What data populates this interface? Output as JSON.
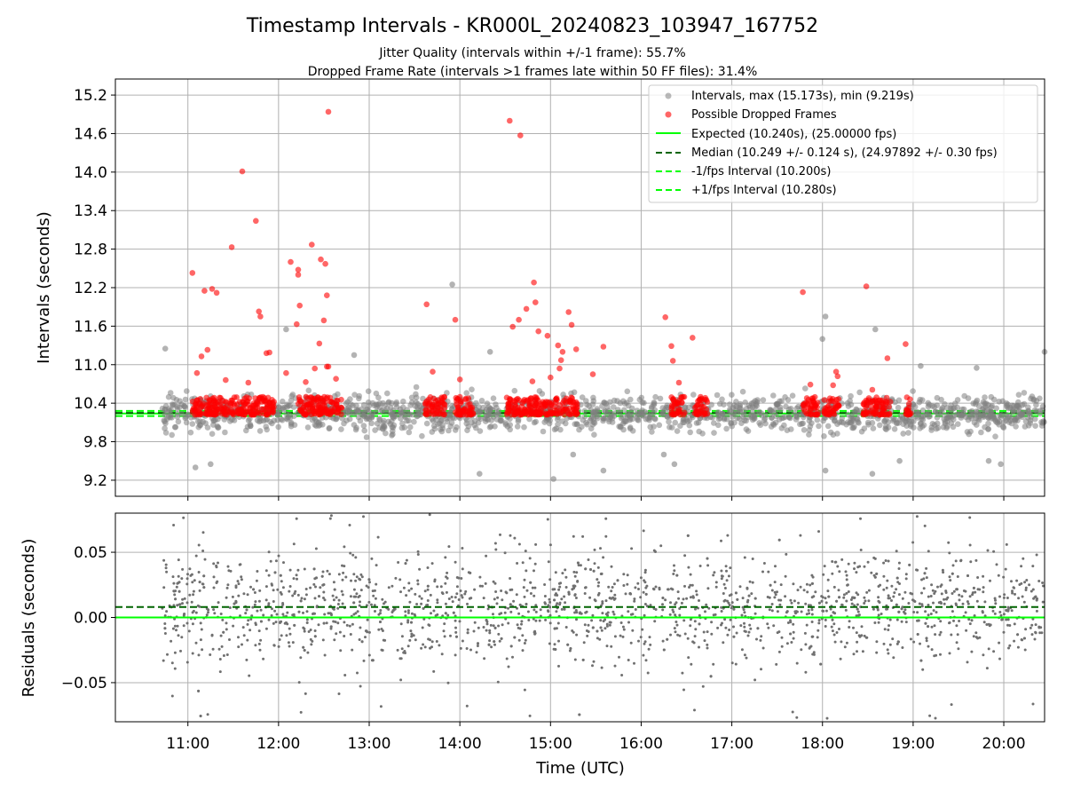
{
  "chart_data": [
    {
      "type": "scatter",
      "title": "Timestamp Intervals - KR000L_20240823_103947_167752",
      "subtitle_lines": [
        "Jitter Quality (intervals within +/-1 frame): 55.7%",
        "Dropped Frame Rate (intervals >1 frames late within 50 FF files): 31.4%"
      ],
      "xlabel": "",
      "ylabel": "Intervals (seconds)",
      "xlim": [
        "10:12",
        "20:27"
      ],
      "ylim": [
        8.95,
        15.45
      ],
      "yticks": [
        9.2,
        9.8,
        10.4,
        11.0,
        11.6,
        12.2,
        12.8,
        13.4,
        14.0,
        14.6,
        15.2
      ],
      "ytick_labels": [
        "9.2",
        "9.8",
        "10.4",
        "11.0",
        "11.6",
        "12.2",
        "12.8",
        "13.4",
        "14.0",
        "14.6",
        "15.2"
      ],
      "xticks": [
        "11:00",
        "12:00",
        "13:00",
        "14:00",
        "15:00",
        "16:00",
        "17:00",
        "18:00",
        "19:00",
        "20:00"
      ],
      "xtick_labels_shown": false,
      "grid": true,
      "legend_position": "top-right",
      "series": [
        {
          "name": "Intervals, max (15.173s), min (9.219s)",
          "kind": "scatter",
          "color": "#808080",
          "summary": {
            "count_approx": 2600,
            "x_range": [
              "10:43",
              "20:27"
            ],
            "typical_y": [
              10.0,
              10.5
            ],
            "max": 15.173,
            "min": 9.219
          },
          "notable_points": [
            {
              "x": "10:45",
              "y": 11.25
            },
            {
              "x": "11:05",
              "y": 9.4
            },
            {
              "x": "11:15",
              "y": 9.45
            },
            {
              "x": "12:05",
              "y": 11.55
            },
            {
              "x": "12:50",
              "y": 11.15
            },
            {
              "x": "13:55",
              "y": 12.25
            },
            {
              "x": "14:13",
              "y": 9.3
            },
            {
              "x": "14:20",
              "y": 11.2
            },
            {
              "x": "15:02",
              "y": 9.22
            },
            {
              "x": "15:15",
              "y": 9.6
            },
            {
              "x": "15:35",
              "y": 9.35
            },
            {
              "x": "16:15",
              "y": 9.6
            },
            {
              "x": "16:22",
              "y": 9.45
            },
            {
              "x": "18:02",
              "y": 11.75
            },
            {
              "x": "18:00",
              "y": 11.4
            },
            {
              "x": "18:02",
              "y": 9.35
            },
            {
              "x": "18:35",
              "y": 11.55
            },
            {
              "x": "18:33",
              "y": 9.3
            },
            {
              "x": "18:51",
              "y": 9.5
            },
            {
              "x": "19:05",
              "y": 10.98
            },
            {
              "x": "19:42",
              "y": 10.95
            },
            {
              "x": "19:50",
              "y": 9.5
            },
            {
              "x": "19:58",
              "y": 9.45
            },
            {
              "x": "20:27",
              "y": 11.2
            }
          ]
        },
        {
          "name": "Possible Dropped Frames",
          "kind": "scatter",
          "color": "#ff0000",
          "summary": {
            "band_y": [
              10.22,
              10.5
            ]
          },
          "band_segments": [
            [
              "11:03",
              "11:57"
            ],
            [
              "12:13",
              "12:42"
            ],
            [
              "13:37",
              "13:50"
            ],
            [
              "13:57",
              "14:09"
            ],
            [
              "14:31",
              "15:18"
            ],
            [
              "16:20",
              "16:29"
            ],
            [
              "16:35",
              "16:44"
            ],
            [
              "17:47",
              "17:57"
            ],
            [
              "18:01",
              "18:11"
            ],
            [
              "18:27",
              "18:45"
            ],
            [
              "18:55",
              "18:59"
            ]
          ],
          "points": [
            {
              "x": "11:03",
              "y": 12.43
            },
            {
              "x": "11:11",
              "y": 12.15
            },
            {
              "x": "11:16",
              "y": 12.18
            },
            {
              "x": "11:19",
              "y": 12.12
            },
            {
              "x": "11:29",
              "y": 12.83
            },
            {
              "x": "11:36",
              "y": 14.01
            },
            {
              "x": "11:45",
              "y": 13.24
            },
            {
              "x": "11:47",
              "y": 11.83
            },
            {
              "x": "11:48",
              "y": 11.75
            },
            {
              "x": "11:52",
              "y": 11.18
            },
            {
              "x": "11:54",
              "y": 11.19
            },
            {
              "x": "11:09",
              "y": 11.13
            },
            {
              "x": "11:13",
              "y": 11.23
            },
            {
              "x": "12:08",
              "y": 12.6
            },
            {
              "x": "12:13",
              "y": 12.48
            },
            {
              "x": "12:13",
              "y": 12.4
            },
            {
              "x": "12:14",
              "y": 11.92
            },
            {
              "x": "12:12",
              "y": 11.63
            },
            {
              "x": "12:22",
              "y": 12.87
            },
            {
              "x": "12:27",
              "y": 11.33
            },
            {
              "x": "12:28",
              "y": 12.64
            },
            {
              "x": "12:30",
              "y": 11.69
            },
            {
              "x": "12:31",
              "y": 12.57
            },
            {
              "x": "12:32",
              "y": 12.08
            },
            {
              "x": "12:33",
              "y": 14.94
            },
            {
              "x": "12:32",
              "y": 10.97
            },
            {
              "x": "12:33",
              "y": 10.97
            },
            {
              "x": "13:38",
              "y": 11.94
            },
            {
              "x": "13:57",
              "y": 11.7
            },
            {
              "x": "14:33",
              "y": 14.8
            },
            {
              "x": "14:40",
              "y": 14.57
            },
            {
              "x": "14:39",
              "y": 11.7
            },
            {
              "x": "14:35",
              "y": 11.59
            },
            {
              "x": "14:44",
              "y": 11.87
            },
            {
              "x": "14:50",
              "y": 11.97
            },
            {
              "x": "14:49",
              "y": 12.28
            },
            {
              "x": "14:52",
              "y": 11.52
            },
            {
              "x": "14:58",
              "y": 11.45
            },
            {
              "x": "15:05",
              "y": 11.3
            },
            {
              "x": "15:07",
              "y": 11.07
            },
            {
              "x": "15:08",
              "y": 11.2
            },
            {
              "x": "15:12",
              "y": 11.82
            },
            {
              "x": "15:14",
              "y": 11.62
            },
            {
              "x": "15:17",
              "y": 11.24
            },
            {
              "x": "15:35",
              "y": 11.28
            },
            {
              "x": "16:16",
              "y": 11.74
            },
            {
              "x": "16:20",
              "y": 11.29
            },
            {
              "x": "16:21",
              "y": 11.06
            },
            {
              "x": "16:34",
              "y": 11.42
            },
            {
              "x": "17:47",
              "y": 12.13
            },
            {
              "x": "18:09",
              "y": 10.89
            },
            {
              "x": "18:10",
              "y": 10.82
            },
            {
              "x": "18:29",
              "y": 12.22
            },
            {
              "x": "18:43",
              "y": 11.1
            },
            {
              "x": "18:55",
              "y": 11.32
            },
            {
              "x": "11:06",
              "y": 10.87
            },
            {
              "x": "11:25",
              "y": 10.76
            },
            {
              "x": "11:40",
              "y": 10.72
            },
            {
              "x": "12:05",
              "y": 10.87
            },
            {
              "x": "12:18",
              "y": 10.73
            },
            {
              "x": "12:24",
              "y": 10.94
            },
            {
              "x": "12:38",
              "y": 10.78
            },
            {
              "x": "13:42",
              "y": 10.89
            },
            {
              "x": "14:00",
              "y": 10.77
            },
            {
              "x": "14:48",
              "y": 10.74
            },
            {
              "x": "15:00",
              "y": 10.8
            },
            {
              "x": "15:06",
              "y": 10.94
            },
            {
              "x": "15:28",
              "y": 10.85
            },
            {
              "x": "16:25",
              "y": 10.72
            },
            {
              "x": "17:52",
              "y": 10.69
            },
            {
              "x": "18:07",
              "y": 10.68
            },
            {
              "x": "18:33",
              "y": 10.61
            }
          ]
        },
        {
          "name": "Expected (10.240s), (25.00000 fps)",
          "kind": "hline",
          "y": 10.24,
          "color": "#00ff00",
          "style": "solid"
        },
        {
          "name": "Median (10.249 +/- 0.124 s), (24.97892 +/- 0.30 fps)",
          "kind": "hline",
          "y": 10.249,
          "color": "#006400",
          "style": "dashed"
        },
        {
          "name": "-1/fps Interval (10.200s)",
          "kind": "hline",
          "y": 10.2,
          "color": "#00ff00",
          "style": "dashed"
        },
        {
          "name": "+1/fps Interval (10.280s)",
          "kind": "hline",
          "y": 10.28,
          "color": "#00ff00",
          "style": "dashed"
        }
      ]
    },
    {
      "type": "scatter",
      "title": "",
      "xlabel": "Time (UTC)",
      "ylabel": "Residuals (seconds)",
      "xlim": [
        "10:12",
        "20:27"
      ],
      "ylim": [
        -0.08,
        0.08
      ],
      "yticks": [
        -0.05,
        0.0,
        0.05
      ],
      "ytick_labels": [
        "−0.05",
        "0.00",
        "0.05"
      ],
      "xticks": [
        "11:00",
        "12:00",
        "13:00",
        "14:00",
        "15:00",
        "16:00",
        "17:00",
        "18:00",
        "19:00",
        "20:00"
      ],
      "xtick_labels": [
        "11:00",
        "12:00",
        "13:00",
        "14:00",
        "15:00",
        "16:00",
        "17:00",
        "18:00",
        "19:00",
        "20:00"
      ],
      "grid": true,
      "series": [
        {
          "kind": "scatter",
          "color": "#707070",
          "summary": {
            "count_approx": 2600,
            "x_range": [
              "10:43",
              "20:27"
            ],
            "typical_y": [
              -0.03,
              0.05
            ],
            "clipped_beyond_ylim": true
          }
        },
        {
          "kind": "hline",
          "y": 0.0,
          "color": "#00ff00",
          "style": "solid"
        },
        {
          "kind": "hline",
          "y": 0.008,
          "color": "#006400",
          "style": "dashed"
        }
      ]
    }
  ]
}
